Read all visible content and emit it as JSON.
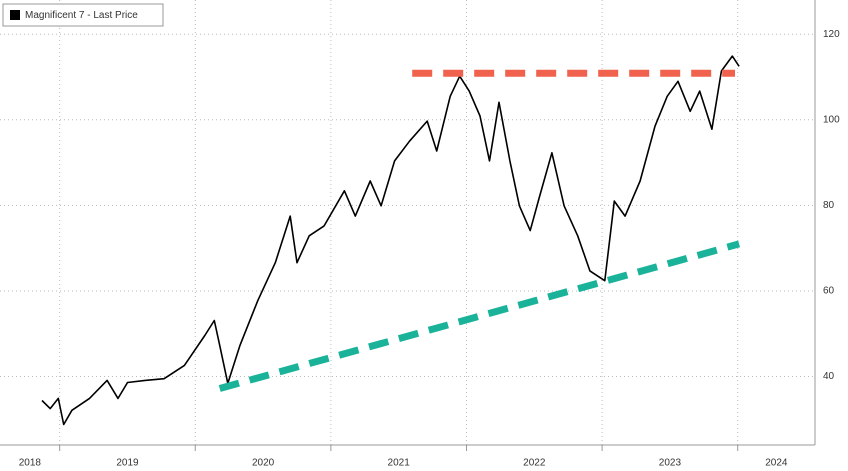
{
  "chart_data": {
    "type": "line",
    "series": [
      {
        "name": "Magnificent 7 - Last Price",
        "color": "#000000",
        "x": [
          2018.87,
          2018.93,
          2018.99,
          2019.03,
          2019.09,
          2019.22,
          2019.35,
          2019.43,
          2019.5,
          2019.63,
          2019.77,
          2019.92,
          2020.07,
          2020.14,
          2020.18,
          2020.24,
          2020.33,
          2020.46,
          2020.59,
          2020.7,
          2020.75,
          2020.84,
          2020.95,
          2021.1,
          2021.18,
          2021.29,
          2021.37,
          2021.47,
          2021.58,
          2021.71,
          2021.78,
          2021.88,
          2021.95,
          2022.02,
          2022.1,
          2022.17,
          2022.24,
          2022.32,
          2022.39,
          2022.47,
          2022.54,
          2022.63,
          2022.72,
          2022.82,
          2022.91,
          2023.02,
          2023.09,
          2023.17,
          2023.28,
          2023.39,
          2023.48,
          2023.56,
          2023.65,
          2023.72,
          2023.81,
          2023.88,
          2023.96,
          2024.01
        ],
        "values": [
          34.4,
          32.5,
          34.9,
          28.8,
          32.1,
          34.9,
          39.1,
          34.9,
          38.6,
          39.1,
          39.5,
          42.6,
          49.6,
          53.1,
          47.3,
          38.4,
          47.3,
          57.7,
          66.6,
          77.5,
          66.6,
          72.9,
          75.2,
          83.4,
          77.5,
          85.7,
          79.9,
          90.4,
          95.0,
          99.7,
          92.7,
          105.5,
          110.2,
          106.7,
          100.9,
          90.4,
          104.1,
          90.4,
          79.9,
          74.1,
          82.2,
          92.3,
          79.9,
          72.9,
          64.7,
          62.4,
          81.0,
          77.5,
          85.7,
          98.5,
          105.5,
          109.0,
          102.0,
          106.7,
          97.8,
          111.4,
          114.9,
          112.5
        ]
      }
    ],
    "trend_lines": [
      {
        "color": "#f0624d",
        "x": [
          2021.6,
          2023.98
        ],
        "values": [
          110.9,
          110.9
        ]
      },
      {
        "color": "#1ab39a",
        "x": [
          2020.18,
          2024.01
        ],
        "values": [
          37.2,
          71.0
        ]
      }
    ],
    "xlim": [
      2018.56,
      2024.57
    ],
    "xticks": [
      2018,
      2019,
      2020,
      2021,
      2022,
      2023,
      2024
    ],
    "ylim": [
      24,
      128
    ],
    "yticks": [
      40,
      60,
      80,
      100,
      120
    ],
    "grid": true
  }
}
